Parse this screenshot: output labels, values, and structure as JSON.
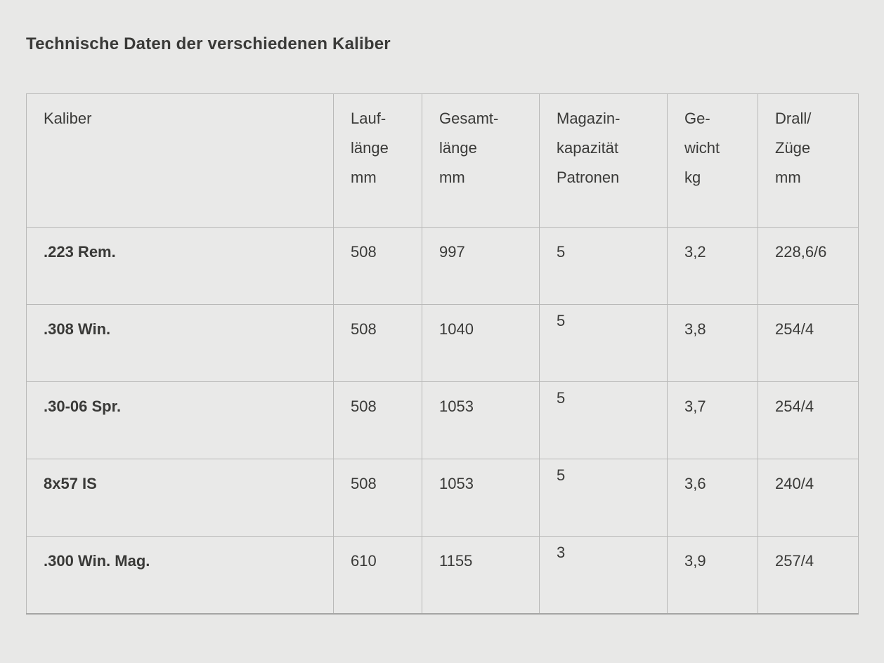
{
  "heading": "Technische Daten der verschiedenen Kaliber",
  "colors": {
    "page_background": "#e8e8e7",
    "table_background": "#e9e9e8",
    "grid_border": "#b9b9b8",
    "table_bottom_border": "#a5a5a4",
    "text": "#3a3a38"
  },
  "chart_data": {
    "type": "table",
    "title": "Technische Daten der verschiedenen Kaliber",
    "columns": [
      "Kaliber",
      "Lauflänge mm",
      "Gesamtlänge mm",
      "Magazinkapazität Patronen",
      "Gewicht kg",
      "Drall/Züge mm"
    ],
    "column_header_lines": [
      [
        "Kaliber"
      ],
      [
        "Lauf-",
        "länge",
        "mm"
      ],
      [
        "Gesamt-",
        "länge",
        "mm"
      ],
      [
        "Magazin-",
        "kapazität",
        "Patronen"
      ],
      [
        "Ge-",
        "wicht",
        "kg"
      ],
      [
        "Drall/",
        "Züge",
        "mm"
      ]
    ],
    "rows": [
      [
        ".223 Rem.",
        "508",
        "997",
        "5",
        "3,2",
        "228,6/6"
      ],
      [
        ".308 Win.",
        "508",
        "1040",
        "5",
        "3,8",
        "254/4"
      ],
      [
        ".30-06 Spr.",
        "508",
        "1053",
        "5",
        "3,7",
        "254/4"
      ],
      [
        "8x57 IS",
        "508",
        "1053",
        "5",
        "3,6",
        "240/4"
      ],
      [
        ".300 Win. Mag.",
        "610",
        "1155",
        "3",
        "3,9",
        "257/4"
      ]
    ]
  }
}
